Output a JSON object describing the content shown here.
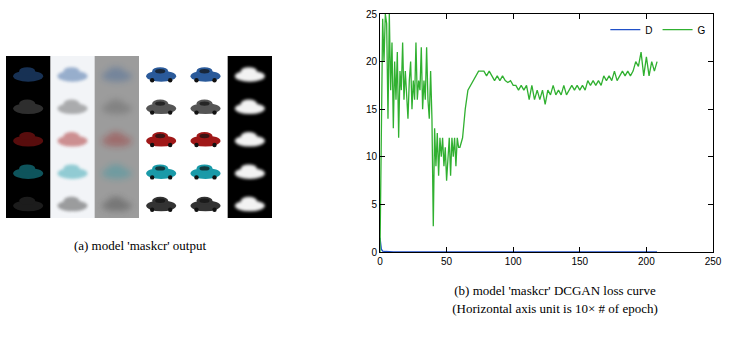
{
  "captions": {
    "a": "(a) model 'maskcr' output",
    "b": [
      "(b) model 'maskcr' DCGAN loss curve",
      "(Horizontal axis unit is 10× # of epoch)"
    ]
  },
  "chart_data": {
    "type": "line",
    "xlim": [
      0,
      250
    ],
    "xticks": [
      0,
      50,
      100,
      150,
      200,
      250
    ],
    "ylim": [
      0,
      25
    ],
    "yticks": [
      0,
      5,
      10,
      15,
      20,
      25
    ],
    "grid": false,
    "legend": "top right",
    "series": [
      {
        "name": "D",
        "color": "#2050c8",
        "x": [
          0,
          1,
          2,
          4,
          10,
          40,
          50,
          100,
          150,
          208
        ],
        "values": [
          1.5,
          0.3,
          0.1,
          0.05,
          0.02,
          0.05,
          0.02,
          0.01,
          0.01,
          0.01
        ]
      },
      {
        "name": "G",
        "color": "#30b030",
        "x": [
          0,
          1,
          2,
          3,
          4,
          5,
          6,
          7,
          8,
          9,
          10,
          11,
          12,
          13,
          14,
          15,
          16,
          17,
          18,
          19,
          20,
          21,
          22,
          23,
          24,
          25,
          26,
          27,
          28,
          29,
          30,
          31,
          32,
          33,
          34,
          35,
          36,
          37,
          38,
          39,
          40,
          41,
          42,
          43,
          44,
          45,
          46,
          47,
          48,
          49,
          50,
          51,
          52,
          53,
          54,
          55,
          56,
          57,
          58,
          59,
          60,
          62,
          64,
          66,
          68,
          70,
          72,
          74,
          76,
          78,
          80,
          82,
          84,
          86,
          88,
          90,
          92,
          94,
          96,
          98,
          100,
          102,
          104,
          106,
          108,
          110,
          112,
          114,
          116,
          118,
          120,
          122,
          124,
          126,
          128,
          130,
          132,
          134,
          136,
          138,
          140,
          142,
          144,
          146,
          148,
          150,
          152,
          154,
          156,
          158,
          160,
          162,
          164,
          166,
          168,
          170,
          172,
          174,
          176,
          178,
          180,
          182,
          184,
          186,
          188,
          190,
          192,
          194,
          196,
          198,
          200,
          202,
          204,
          206,
          208
        ],
        "values": [
          0,
          10,
          24.5,
          20,
          25,
          24,
          14,
          25,
          17,
          22,
          13,
          20,
          16,
          21,
          12,
          19,
          17,
          22,
          16,
          19,
          17,
          14,
          18,
          20,
          15,
          18,
          16,
          22,
          16,
          18,
          17,
          21.5,
          15,
          18,
          16,
          21.5,
          16,
          14,
          19,
          14,
          2.7,
          13,
          9,
          12.5,
          8,
          12,
          10,
          12,
          9,
          11,
          7.5,
          10,
          12,
          8,
          12,
          10,
          12,
          9,
          12,
          11,
          11,
          12,
          15,
          17,
          17.5,
          18,
          18.5,
          19,
          19,
          19,
          18.5,
          19,
          18.5,
          18,
          18.5,
          18,
          18.5,
          18,
          17.8,
          18,
          17.5,
          17.5,
          17,
          17.5,
          17,
          17.5,
          16,
          17.5,
          16,
          17,
          16,
          17,
          15.5,
          17,
          16.5,
          17.5,
          16.5,
          17,
          16.5,
          17.5,
          16.5,
          17,
          17.5,
          17,
          17.5,
          17,
          17.5,
          17,
          18,
          17.5,
          18,
          17.5,
          18,
          17.5,
          18.5,
          18,
          18.5,
          18,
          19,
          18,
          18.5,
          19,
          18.5,
          19,
          18.5,
          19,
          20,
          19.5,
          21,
          18.5,
          20.5,
          18.5,
          20,
          19,
          20
        ]
      }
    ]
  }
}
